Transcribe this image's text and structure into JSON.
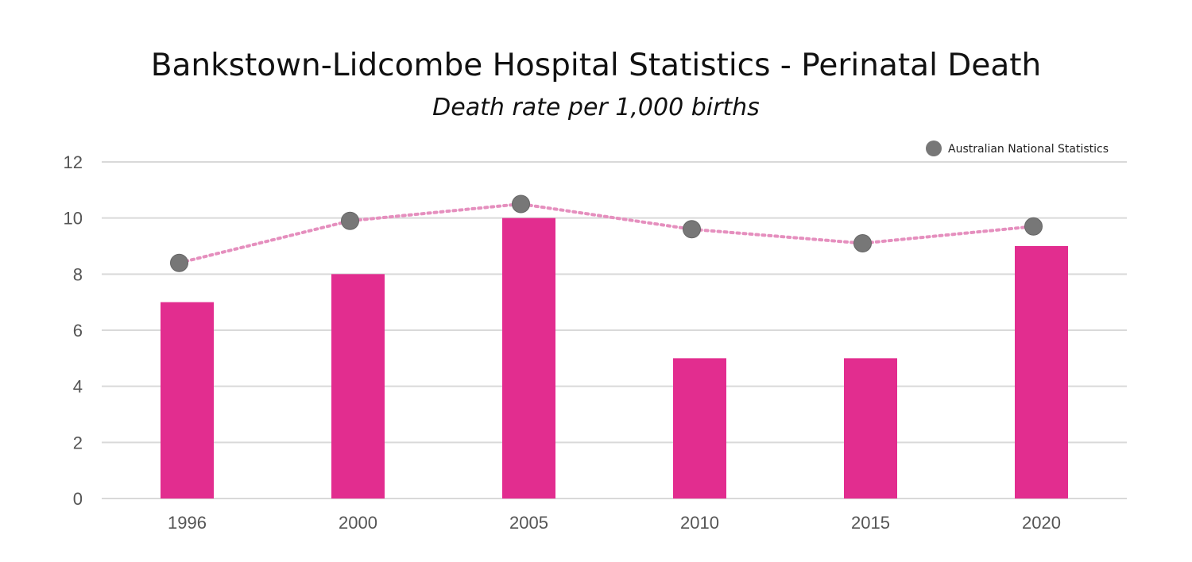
{
  "colors": {
    "bar": "#e22d8f",
    "line": "#e58fbe",
    "marker": "#777777",
    "grid": "#d9d9d9"
  },
  "chart_data": {
    "type": "bar",
    "title": "Bankstown-Lidcombe Hospital Statistics - Perinatal Death",
    "subtitle": "Death rate per 1,000 births",
    "xlabel": "",
    "ylabel": "",
    "categories": [
      "1996",
      "2000",
      "2005",
      "2010",
      "2015",
      "2020"
    ],
    "ylim": [
      0,
      12
    ],
    "yticks": [
      "0",
      "2",
      "4",
      "6",
      "8",
      "10",
      "12"
    ],
    "grid": true,
    "legend_position": "top-right",
    "series": [
      {
        "type": "bar",
        "values": [
          7,
          8,
          10,
          5,
          5,
          9
        ]
      },
      {
        "type": "line",
        "name": "Australian National Statistics",
        "values": [
          8.4,
          9.9,
          10.5,
          9.6,
          9.1,
          9.7
        ]
      }
    ]
  }
}
